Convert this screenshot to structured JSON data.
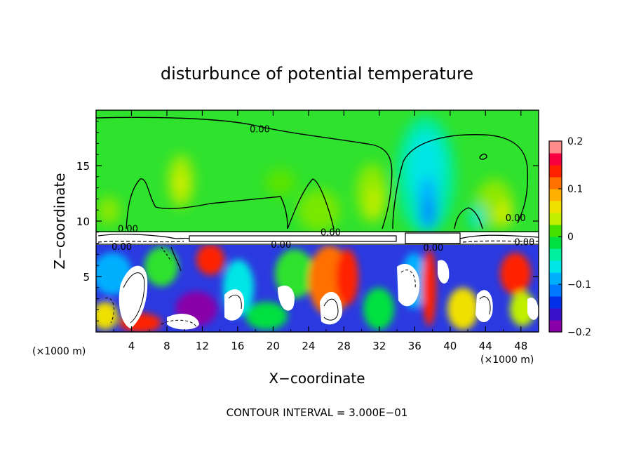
{
  "chart_data": {
    "type": "heatmap",
    "title": "disturbunce of potential temperature",
    "xlabel": "X−coordinate",
    "ylabel": "Z−coordinate",
    "x_unit": "(×1000 m)",
    "y_unit": "(×1000 m)",
    "xlim": [
      0,
      50
    ],
    "ylim": [
      0,
      20
    ],
    "x_ticks": [
      4,
      8,
      12,
      16,
      20,
      24,
      28,
      32,
      36,
      40,
      44,
      48
    ],
    "y_ticks": [
      5,
      10,
      15
    ],
    "colorbar": {
      "range": [
        -0.2,
        0.2
      ],
      "ticks": [
        {
          "value": 0.2,
          "label": "0.2"
        },
        {
          "value": 0.1,
          "label": "0.1"
        },
        {
          "value": 0.0,
          "label": "0"
        },
        {
          "value": -0.1,
          "label": "−0.1"
        },
        {
          "value": -0.2,
          "label": "−0.2"
        }
      ],
      "colors": [
        "#8a00a8",
        "#3a10c8",
        "#0030e8",
        "#0078ff",
        "#00b0ff",
        "#00e6e6",
        "#00f0a0",
        "#00e040",
        "#44e000",
        "#c0f000",
        "#f0e000",
        "#ffb000",
        "#ff7000",
        "#ff2000",
        "#f80040",
        "#ff8c8c"
      ]
    },
    "contour_labels": [
      {
        "x": 18.5,
        "y": 18.2,
        "text": "0.00"
      },
      {
        "x": 3.6,
        "y": 9.2,
        "text": "0.00"
      },
      {
        "x": 2.9,
        "y": 7.6,
        "text": "0.00"
      },
      {
        "x": 26.5,
        "y": 8.9,
        "text": "0.00"
      },
      {
        "x": 20.9,
        "y": 7.8,
        "text": "0.00"
      },
      {
        "x": 38.1,
        "y": 7.5,
        "text": "0.00"
      },
      {
        "x": 47.4,
        "y": 10.2,
        "text": "0.00"
      },
      {
        "x": 48.4,
        "y": 8.0,
        "text": "0.00"
      }
    ],
    "footer": "CONTOUR INTERVAL = 3.000E−01"
  }
}
